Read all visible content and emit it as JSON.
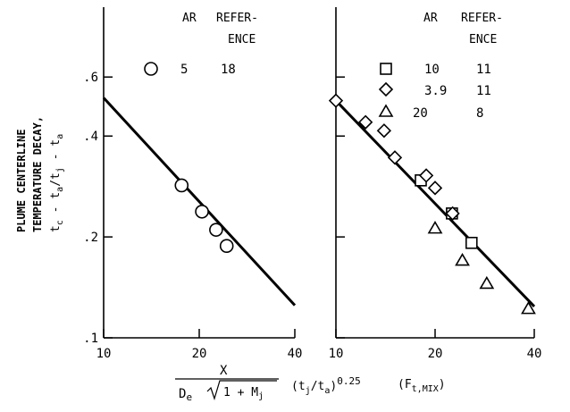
{
  "chart_data": [
    {
      "type": "scatter",
      "panel": "left",
      "x_scale": "log",
      "y_scale": "log",
      "xlim": [
        10,
        40
      ],
      "ylim": [
        0.1,
        1.0
      ],
      "x_ticks": [
        10,
        20,
        40
      ],
      "y_ticks": [
        0.1,
        0.2,
        0.4,
        0.6
      ],
      "x_tick_labels": [
        "10",
        "20",
        "40"
      ],
      "y_tick_labels": [
        ".1",
        ".2",
        ".4",
        ".6"
      ],
      "legend_headers": {
        "ar": "AR",
        "ref_line1": "REFER-",
        "ref_line2": "ENCE"
      },
      "series": [
        {
          "marker": "circle",
          "ar": "5",
          "reference": "18",
          "points": [
            {
              "x": 17.6,
              "y": 0.285
            },
            {
              "x": 20.4,
              "y": 0.238
            },
            {
              "x": 22.6,
              "y": 0.21
            },
            {
              "x": 24.4,
              "y": 0.188
            }
          ]
        }
      ],
      "fit_line": {
        "x": [
          10,
          40
        ],
        "y": [
          0.52,
          0.125
        ]
      }
    },
    {
      "type": "scatter",
      "panel": "right",
      "x_scale": "log",
      "y_scale": "log",
      "xlim": [
        10,
        40
      ],
      "ylim": [
        0.1,
        1.0
      ],
      "x_ticks": [
        10,
        20,
        40
      ],
      "y_ticks": [
        0.1,
        0.2,
        0.4,
        0.6
      ],
      "x_tick_labels": [
        "10",
        "20",
        "40"
      ],
      "legend_headers": {
        "ar": "AR",
        "ref_line1": "REFER-",
        "ref_line2": "ENCE"
      },
      "series": [
        {
          "marker": "square",
          "ar": "10",
          "reference": "11",
          "points": [
            {
              "x": 18.1,
              "y": 0.295
            },
            {
              "x": 22.5,
              "y": 0.235
            },
            {
              "x": 25.8,
              "y": 0.192
            }
          ]
        },
        {
          "marker": "diamond",
          "ar": "3.9",
          "reference": "11",
          "points": [
            {
              "x": 10.0,
              "y": 0.51
            },
            {
              "x": 12.3,
              "y": 0.44
            },
            {
              "x": 14.0,
              "y": 0.415
            },
            {
              "x": 15.1,
              "y": 0.345
            },
            {
              "x": 18.8,
              "y": 0.305
            },
            {
              "x": 20.0,
              "y": 0.28
            },
            {
              "x": 22.6,
              "y": 0.235
            }
          ]
        },
        {
          "marker": "triangle",
          "ar": "20",
          "reference": "8",
          "points": [
            {
              "x": 20.0,
              "y": 0.212
            },
            {
              "x": 24.2,
              "y": 0.17
            },
            {
              "x": 28.7,
              "y": 0.145
            },
            {
              "x": 38.4,
              "y": 0.122
            }
          ]
        }
      ],
      "fit_line": {
        "x": [
          10,
          40
        ],
        "y": [
          0.51,
          0.124
        ]
      }
    }
  ],
  "y_axis_label": {
    "line1": "PLUME CENTERLINE",
    "line2": "TEMPERATURE DECAY,",
    "line3_parts": [
      "t",
      "c",
      " - t",
      "a",
      "/t",
      "j",
      " - t",
      "a"
    ]
  },
  "x_axis_label": {
    "numerator": "X",
    "den_de": "D",
    "den_de_sub": "e",
    "den_root": "1 + M",
    "den_root_sub": "j",
    "factor_open": "(t",
    "factor_j": "j",
    "factor_mid": "/t",
    "factor_a": "a",
    "factor_close": ")",
    "factor_exp": "0.25",
    "ft_open": "(F",
    "ft_sub": "t,MIX",
    "ft_close": ")"
  },
  "colors": {
    "ink": "#000000",
    "background": "#ffffff"
  }
}
